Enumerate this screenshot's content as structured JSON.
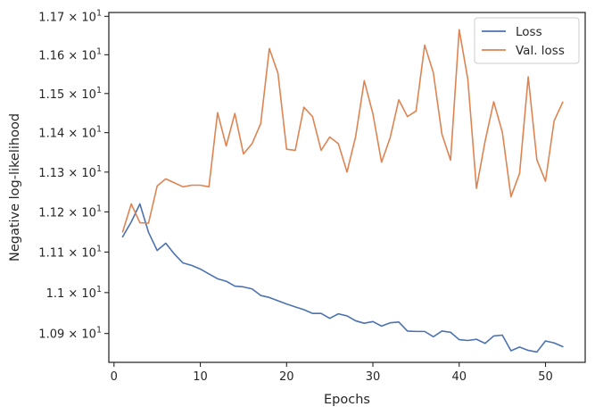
{
  "chart_data": {
    "type": "line",
    "xlabel": "Epochs",
    "ylabel": "Negative log-likelihood",
    "y_scale": "log",
    "xlim": [
      -0.6,
      54.6
    ],
    "ylim": [
      10.83,
      11.71
    ],
    "grid": false,
    "legend_position": "top-right",
    "x_ticks": [
      0,
      10,
      20,
      30,
      40,
      50
    ],
    "x_tick_labels": [
      "0",
      "10",
      "20",
      "30",
      "40",
      "50"
    ],
    "y_ticks": [
      10.9,
      11.0,
      11.1,
      11.2,
      11.3,
      11.4,
      11.5,
      11.6,
      11.7
    ],
    "y_tick_mantissas": [
      "1.09",
      "1.1",
      "1.11",
      "1.12",
      "1.13",
      "1.14",
      "1.15",
      "1.16",
      "1.17"
    ],
    "y_tick_multiplier": "× 10",
    "y_tick_exponent": "1",
    "colors": {
      "Loss": "#4c72b0",
      "Val. loss": "#dd8452",
      "axes": "#262626"
    },
    "series": [
      {
        "name": "Loss",
        "x": [
          1,
          2,
          3,
          4,
          5,
          6,
          7,
          8,
          9,
          10,
          11,
          12,
          13,
          14,
          15,
          16,
          17,
          18,
          19,
          20,
          21,
          22,
          23,
          24,
          25,
          26,
          27,
          28,
          29,
          30,
          31,
          32,
          33,
          34,
          35,
          36,
          37,
          38,
          39,
          40,
          41,
          42,
          43,
          44,
          45,
          46,
          47,
          48,
          49,
          50,
          51,
          52
        ],
        "values": [
          11.138,
          11.175,
          11.22,
          11.149,
          11.104,
          11.122,
          11.095,
          11.073,
          11.067,
          11.058,
          11.046,
          11.034,
          11.028,
          11.016,
          11.014,
          11.009,
          10.993,
          10.988,
          10.98,
          10.972,
          10.965,
          10.958,
          10.949,
          10.949,
          10.937,
          10.948,
          10.943,
          10.931,
          10.925,
          10.929,
          10.918,
          10.926,
          10.928,
          10.906,
          10.905,
          10.905,
          10.892,
          10.906,
          10.903,
          10.885,
          10.883,
          10.886,
          10.876,
          10.894,
          10.896,
          10.858,
          10.867,
          10.859,
          10.855,
          10.882,
          10.877,
          10.868
        ]
      },
      {
        "name": "Val. loss",
        "x": [
          1,
          2,
          3,
          4,
          5,
          6,
          7,
          8,
          9,
          10,
          11,
          12,
          13,
          14,
          15,
          16,
          17,
          18,
          19,
          20,
          21,
          22,
          23,
          24,
          25,
          26,
          27,
          28,
          29,
          30,
          31,
          32,
          33,
          34,
          35,
          36,
          37,
          38,
          39,
          40,
          41,
          42,
          43,
          44,
          45,
          46,
          47,
          48,
          49,
          50,
          51,
          52
        ],
        "values": [
          11.15,
          11.22,
          11.173,
          11.172,
          11.265,
          11.283,
          11.273,
          11.263,
          11.267,
          11.267,
          11.263,
          11.451,
          11.366,
          11.449,
          11.346,
          11.372,
          11.423,
          11.616,
          11.552,
          11.358,
          11.355,
          11.465,
          11.441,
          11.355,
          11.389,
          11.372,
          11.3,
          11.39,
          11.533,
          11.448,
          11.325,
          11.387,
          11.484,
          11.441,
          11.455,
          11.625,
          11.554,
          11.396,
          11.33,
          11.665,
          11.537,
          11.259,
          11.378,
          11.479,
          11.401,
          11.238,
          11.297,
          11.543,
          11.331,
          11.277,
          11.43,
          11.478
        ]
      }
    ]
  }
}
